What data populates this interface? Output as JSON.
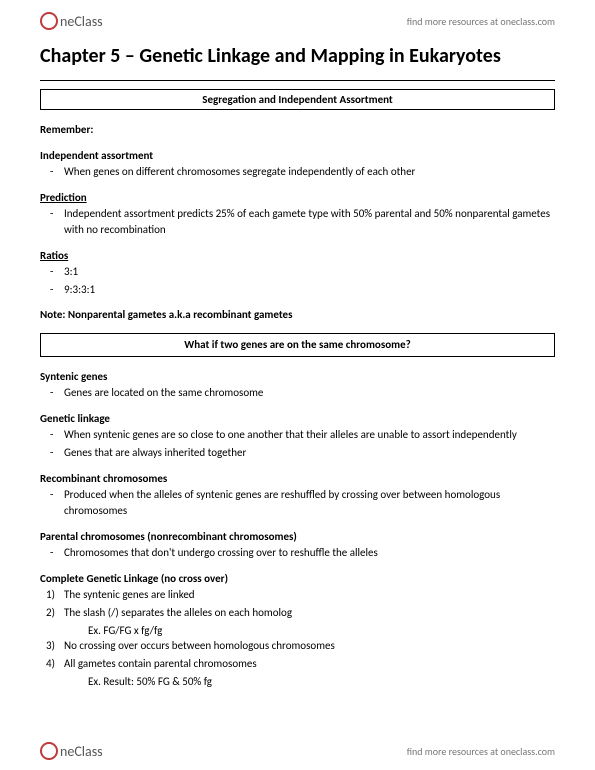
{
  "header": {
    "logo_text": "neClass",
    "link_text": "find more resources at oneclass.com"
  },
  "title": "Chapter 5 – Genetic Linkage and Mapping in Eukaryotes",
  "box1": "Segregation and Independent Assortment",
  "remember": {
    "label": "Remember:",
    "subheading": "Independent assortment",
    "bullet": "When genes on different chromosomes segregate independently of each other"
  },
  "prediction": {
    "label": "Prediction",
    "bullet": "Independent assortment predicts 25% of each gamete type with 50% parental and 50% nonparental gametes with no recombination"
  },
  "ratios": {
    "label": "Ratios",
    "b1": "3:1",
    "b2": "9:3:3:1"
  },
  "note": "Note: Nonparental gametes a.k.a recombinant gametes",
  "box2": "What if two genes are on the same chromosome?",
  "syntenic": {
    "label": "Syntenic genes",
    "bullet": "Genes are located on the same chromosome"
  },
  "linkage": {
    "label": "Genetic linkage",
    "b1": "When syntenic genes are so close to one another that their alleles are unable to assort independently",
    "b2": "Genes that are always inherited together"
  },
  "recomb": {
    "label": "Recombinant chromosomes",
    "bullet": "Produced when the alleles of syntenic genes are reshuffled by crossing over between homologous chromosomes"
  },
  "parental": {
    "label": "Parental chromosomes (nonrecombinant chromosomes)",
    "bullet": "Chromosomes that don't undergo crossing over to reshuffle the alleles"
  },
  "complete": {
    "label": "Complete Genetic Linkage (no cross over)",
    "n1": "The syntenic genes are linked",
    "n2": "The slash (/) separates the alleles on each homolog",
    "ex2": "Ex.     FG/FG x fg/fg",
    "n3": "No crossing over occurs between homologous chromosomes",
    "n4": "All gametes contain parental chromosomes",
    "ex4": "Ex. Result: 50% FG & 50% fg"
  },
  "footer": {
    "logo_text": "neClass",
    "link_text": "find more resources at oneclass.com"
  }
}
